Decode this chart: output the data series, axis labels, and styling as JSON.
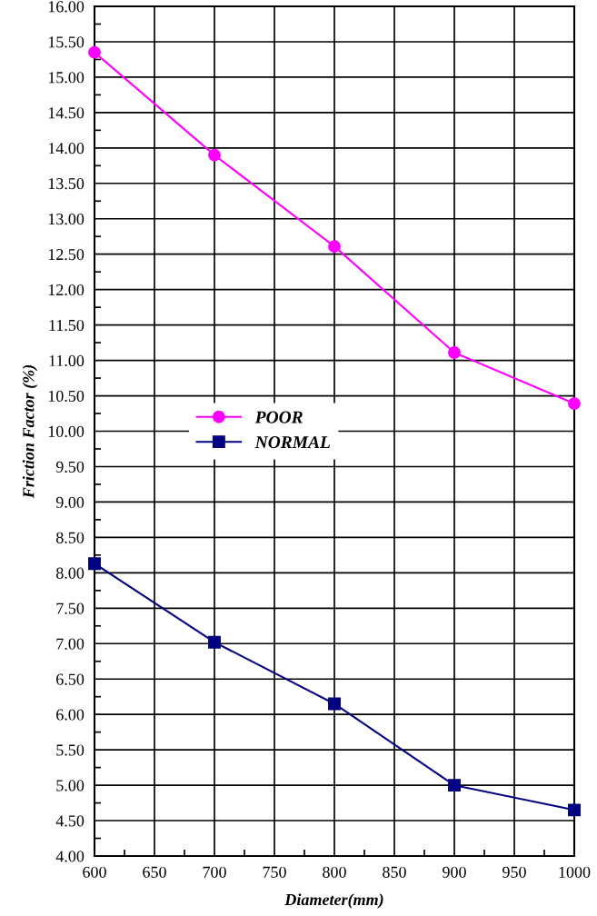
{
  "chart_data": {
    "type": "line",
    "xlabel": "Diameter(mm)",
    "ylabel": "Friction Factor (%)",
    "x": [
      600,
      700,
      800,
      900,
      1000
    ],
    "series": [
      {
        "name": "POOR",
        "color": "#ff00ff",
        "marker": "circle",
        "values": [
          15.35,
          13.9,
          12.61,
          11.11,
          10.39
        ]
      },
      {
        "name": "NORMAL",
        "color": "#000080",
        "marker": "square",
        "values": [
          8.13,
          7.02,
          6.15,
          5.0,
          4.65
        ]
      }
    ],
    "xlim": [
      600,
      1000
    ],
    "xticks": [
      600,
      650,
      700,
      750,
      800,
      850,
      900,
      950,
      1000
    ],
    "ylim": [
      4,
      16
    ],
    "yticks": [
      {
        "value": 4,
        "label": "4.00"
      },
      {
        "value": 4.5,
        "label": "4.50"
      },
      {
        "value": 5,
        "label": "5.00"
      },
      {
        "value": 5.5,
        "label": "5.50"
      },
      {
        "value": 6,
        "label": "6.00"
      },
      {
        "value": 6.5,
        "label": "6.50"
      },
      {
        "value": 7,
        "label": "7.00"
      },
      {
        "value": 7.5,
        "label": "7.50"
      },
      {
        "value": 8,
        "label": "8.00"
      },
      {
        "value": 8.5,
        "label": "8.50"
      },
      {
        "value": 9,
        "label": "9.00"
      },
      {
        "value": 9.5,
        "label": "9.50"
      },
      {
        "value": 10,
        "label": "10.00"
      },
      {
        "value": 10.5,
        "label": "10.50"
      },
      {
        "value": 11,
        "label": "11.00"
      },
      {
        "value": 11.5,
        "label": "11.50"
      },
      {
        "value": 12,
        "label": "12.00"
      },
      {
        "value": 12.5,
        "label": "12.50"
      },
      {
        "value": 13,
        "label": "13.00"
      },
      {
        "value": 13.5,
        "label": "13.50"
      },
      {
        "value": 14,
        "label": "14.00"
      },
      {
        "value": 14.5,
        "label": "14.50"
      },
      {
        "value": 15,
        "label": "15.00"
      },
      {
        "value": 15.5,
        "label": "15.50"
      },
      {
        "value": 16,
        "label": "16.00"
      }
    ],
    "grid": true,
    "legend": "center left",
    "line_style": "solid"
  }
}
